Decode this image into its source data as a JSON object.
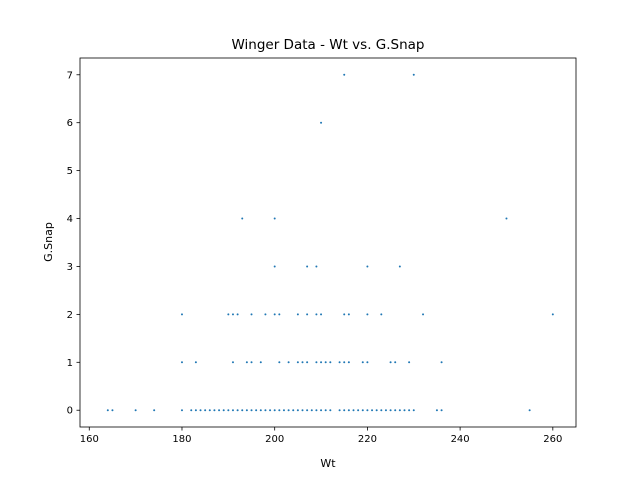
{
  "chart_data": {
    "type": "scatter",
    "title": "Winger Data - Wt vs. G.Snap",
    "xlabel": "Wt",
    "ylabel": "G.Snap",
    "xlim": [
      158,
      265
    ],
    "ylim": [
      -0.35,
      7.35
    ],
    "xticks": [
      160,
      180,
      200,
      220,
      240,
      260
    ],
    "yticks": [
      0,
      1,
      2,
      3,
      4,
      5,
      6,
      7
    ],
    "grid": false,
    "marker_color": "#1f77b4",
    "points": [
      [
        164,
        0
      ],
      [
        165,
        0
      ],
      [
        170,
        0
      ],
      [
        174,
        0
      ],
      [
        180,
        0
      ],
      [
        182,
        0
      ],
      [
        183,
        0
      ],
      [
        184,
        0
      ],
      [
        185,
        0
      ],
      [
        186,
        0
      ],
      [
        187,
        0
      ],
      [
        188,
        0
      ],
      [
        189,
        0
      ],
      [
        190,
        0
      ],
      [
        191,
        0
      ],
      [
        192,
        0
      ],
      [
        193,
        0
      ],
      [
        194,
        0
      ],
      [
        195,
        0
      ],
      [
        196,
        0
      ],
      [
        197,
        0
      ],
      [
        198,
        0
      ],
      [
        199,
        0
      ],
      [
        200,
        0
      ],
      [
        201,
        0
      ],
      [
        202,
        0
      ],
      [
        203,
        0
      ],
      [
        204,
        0
      ],
      [
        205,
        0
      ],
      [
        206,
        0
      ],
      [
        207,
        0
      ],
      [
        208,
        0
      ],
      [
        209,
        0
      ],
      [
        210,
        0
      ],
      [
        211,
        0
      ],
      [
        212,
        0
      ],
      [
        214,
        0
      ],
      [
        215,
        0
      ],
      [
        216,
        0
      ],
      [
        217,
        0
      ],
      [
        218,
        0
      ],
      [
        219,
        0
      ],
      [
        220,
        0
      ],
      [
        221,
        0
      ],
      [
        222,
        0
      ],
      [
        223,
        0
      ],
      [
        224,
        0
      ],
      [
        225,
        0
      ],
      [
        226,
        0
      ],
      [
        227,
        0
      ],
      [
        228,
        0
      ],
      [
        229,
        0
      ],
      [
        230,
        0
      ],
      [
        235,
        0
      ],
      [
        236,
        0
      ],
      [
        255,
        0
      ],
      [
        180,
        1
      ],
      [
        183,
        1
      ],
      [
        191,
        1
      ],
      [
        194,
        1
      ],
      [
        195,
        1
      ],
      [
        197,
        1
      ],
      [
        201,
        1
      ],
      [
        203,
        1
      ],
      [
        205,
        1
      ],
      [
        206,
        1
      ],
      [
        207,
        1
      ],
      [
        209,
        1
      ],
      [
        210,
        1
      ],
      [
        211,
        1
      ],
      [
        212,
        1
      ],
      [
        214,
        1
      ],
      [
        215,
        1
      ],
      [
        216,
        1
      ],
      [
        219,
        1
      ],
      [
        220,
        1
      ],
      [
        225,
        1
      ],
      [
        226,
        1
      ],
      [
        229,
        1
      ],
      [
        236,
        1
      ],
      [
        180,
        2
      ],
      [
        190,
        2
      ],
      [
        191,
        2
      ],
      [
        192,
        2
      ],
      [
        195,
        2
      ],
      [
        198,
        2
      ],
      [
        200,
        2
      ],
      [
        201,
        2
      ],
      [
        205,
        2
      ],
      [
        207,
        2
      ],
      [
        209,
        2
      ],
      [
        210,
        2
      ],
      [
        215,
        2
      ],
      [
        216,
        2
      ],
      [
        220,
        2
      ],
      [
        223,
        2
      ],
      [
        232,
        2
      ],
      [
        260,
        2
      ],
      [
        200,
        3
      ],
      [
        207,
        3
      ],
      [
        209,
        3
      ],
      [
        220,
        3
      ],
      [
        227,
        3
      ],
      [
        193,
        4
      ],
      [
        200,
        4
      ],
      [
        250,
        4
      ],
      [
        210,
        6
      ],
      [
        215,
        7
      ],
      [
        230,
        7
      ]
    ]
  }
}
